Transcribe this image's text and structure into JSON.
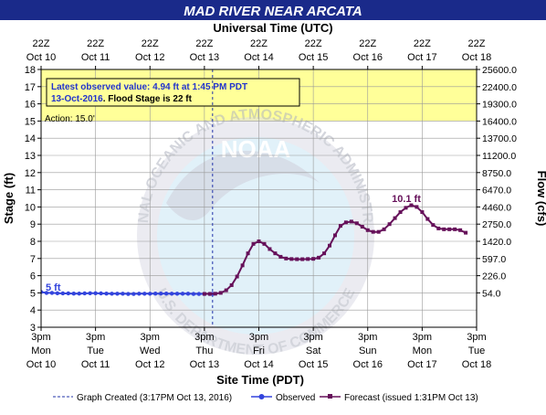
{
  "chart_data": {
    "type": "line",
    "title": "MAD RIVER NEAR ARCATA",
    "top_axis_title": "Universal Time (UTC)",
    "xlabel": "Site Time (PDT)",
    "ylabel": "Stage (ft)",
    "ylabel_right": "Flow (cfs)",
    "ylim": [
      3,
      18
    ],
    "y_ticks": [
      3,
      4,
      5,
      6,
      7,
      8,
      9,
      10,
      11,
      12,
      13,
      14,
      15,
      16,
      17,
      18
    ],
    "x_range_days": [
      0,
      8
    ],
    "bottom_ticks": [
      {
        "day": 0,
        "line1": "3pm",
        "line2": "Mon",
        "line3": "Oct 10"
      },
      {
        "day": 1,
        "line1": "3pm",
        "line2": "Tue",
        "line3": "Oct 11"
      },
      {
        "day": 2,
        "line1": "3pm",
        "line2": "Wed",
        "line3": "Oct 12"
      },
      {
        "day": 3,
        "line1": "3pm",
        "line2": "Thu",
        "line3": "Oct 13"
      },
      {
        "day": 4,
        "line1": "3pm",
        "line2": "Fri",
        "line3": "Oct 14"
      },
      {
        "day": 5,
        "line1": "3pm",
        "line2": "Sat",
        "line3": "Oct 15"
      },
      {
        "day": 6,
        "line1": "3pm",
        "line2": "Sun",
        "line3": "Oct 16"
      },
      {
        "day": 7,
        "line1": "3pm",
        "line2": "Mon",
        "line3": "Oct 17"
      },
      {
        "day": 8,
        "line1": "3pm",
        "line2": "Tue",
        "line3": "Oct 18"
      }
    ],
    "top_ticks": [
      {
        "day": 0,
        "line1": "22Z",
        "line2": "Oct 10"
      },
      {
        "day": 1,
        "line1": "22Z",
        "line2": "Oct 11"
      },
      {
        "day": 2,
        "line1": "22Z",
        "line2": "Oct 12"
      },
      {
        "day": 3,
        "line1": "22Z",
        "line2": "Oct 13"
      },
      {
        "day": 4,
        "line1": "22Z",
        "line2": "Oct 14"
      },
      {
        "day": 5,
        "line1": "22Z",
        "line2": "Oct 15"
      },
      {
        "day": 6,
        "line1": "22Z",
        "line2": "Oct 16"
      },
      {
        "day": 7,
        "line1": "22Z",
        "line2": "Oct 17"
      },
      {
        "day": 8,
        "line1": "22Z",
        "line2": "Oct 18"
      }
    ],
    "flow_ticks": [
      {
        "stage": 5,
        "label": "54.0"
      },
      {
        "stage": 6,
        "label": "226.0"
      },
      {
        "stage": 7,
        "label": "597.0"
      },
      {
        "stage": 8,
        "label": "1420.0"
      },
      {
        "stage": 9,
        "label": "2750.0"
      },
      {
        "stage": 10,
        "label": "4460.0"
      },
      {
        "stage": 11,
        "label": "6470.0"
      },
      {
        "stage": 12,
        "label": "8750.0"
      },
      {
        "stage": 13,
        "label": "11200.0"
      },
      {
        "stage": 14,
        "label": "13700.0"
      },
      {
        "stage": 15,
        "label": "16400.0"
      },
      {
        "stage": 16,
        "label": "19300.0"
      },
      {
        "stage": 17,
        "label": "22400.0"
      },
      {
        "stage": 18,
        "label": "25600.0"
      }
    ],
    "flood_band": {
      "from": 15,
      "to": 18,
      "color": "#ffff99"
    },
    "action_label": "Action: 15.0'",
    "annotation_line1": "Latest observed value: 4.94 ft at 1:45 PM PDT",
    "annotation_line2_prefix": "13-Oct-2016",
    "annotation_line2_suffix": ". Flood Stage is 22 ft",
    "graph_created_day": 3.15,
    "observed_label": "5 ft",
    "forecast_peak_label": "10.1 ft",
    "series": [
      {
        "name": "Observed",
        "color": "#3344dd",
        "points": [
          [
            0.0,
            5.05
          ],
          [
            0.1,
            5.0
          ],
          [
            0.2,
            5.0
          ],
          [
            0.3,
            4.98
          ],
          [
            0.4,
            4.97
          ],
          [
            0.5,
            4.97
          ],
          [
            0.6,
            4.96
          ],
          [
            0.7,
            4.96
          ],
          [
            0.8,
            4.97
          ],
          [
            0.9,
            4.98
          ],
          [
            1.0,
            4.98
          ],
          [
            1.1,
            4.97
          ],
          [
            1.2,
            4.96
          ],
          [
            1.3,
            4.95
          ],
          [
            1.4,
            4.95
          ],
          [
            1.5,
            4.95
          ],
          [
            1.6,
            4.94
          ],
          [
            1.7,
            4.94
          ],
          [
            1.8,
            4.95
          ],
          [
            1.9,
            4.95
          ],
          [
            2.0,
            4.95
          ],
          [
            2.1,
            4.96
          ],
          [
            2.2,
            4.96
          ],
          [
            2.3,
            4.96
          ],
          [
            2.4,
            4.95
          ],
          [
            2.5,
            4.95
          ],
          [
            2.6,
            4.95
          ],
          [
            2.7,
            4.95
          ],
          [
            2.8,
            4.94
          ],
          [
            2.9,
            4.94
          ],
          [
            3.0,
            4.94
          ],
          [
            3.1,
            4.94
          ],
          [
            3.15,
            4.94
          ]
        ]
      },
      {
        "name": "Forecast (issued 1:31PM Oct 13)",
        "color": "#66115a",
        "points": [
          [
            3.0,
            4.94
          ],
          [
            3.1,
            4.94
          ],
          [
            3.2,
            4.95
          ],
          [
            3.3,
            5.0
          ],
          [
            3.4,
            5.15
          ],
          [
            3.5,
            5.45
          ],
          [
            3.6,
            5.95
          ],
          [
            3.7,
            6.6
          ],
          [
            3.8,
            7.3
          ],
          [
            3.9,
            7.85
          ],
          [
            4.0,
            8.0
          ],
          [
            4.1,
            7.85
          ],
          [
            4.2,
            7.55
          ],
          [
            4.3,
            7.3
          ],
          [
            4.4,
            7.1
          ],
          [
            4.5,
            7.0
          ],
          [
            4.6,
            6.97
          ],
          [
            4.7,
            6.96
          ],
          [
            4.8,
            6.96
          ],
          [
            4.9,
            6.97
          ],
          [
            5.0,
            6.98
          ],
          [
            5.1,
            7.05
          ],
          [
            5.2,
            7.3
          ],
          [
            5.3,
            7.75
          ],
          [
            5.4,
            8.35
          ],
          [
            5.5,
            8.9
          ],
          [
            5.6,
            9.1
          ],
          [
            5.7,
            9.15
          ],
          [
            5.8,
            9.05
          ],
          [
            5.9,
            8.85
          ],
          [
            6.0,
            8.65
          ],
          [
            6.1,
            8.55
          ],
          [
            6.2,
            8.55
          ],
          [
            6.3,
            8.7
          ],
          [
            6.4,
            9.0
          ],
          [
            6.5,
            9.35
          ],
          [
            6.6,
            9.7
          ],
          [
            6.7,
            9.95
          ],
          [
            6.8,
            10.1
          ],
          [
            6.9,
            10.0
          ],
          [
            7.0,
            9.7
          ],
          [
            7.1,
            9.3
          ],
          [
            7.2,
            8.95
          ],
          [
            7.3,
            8.75
          ],
          [
            7.4,
            8.7
          ],
          [
            7.5,
            8.7
          ],
          [
            7.6,
            8.7
          ],
          [
            7.7,
            8.65
          ],
          [
            7.8,
            8.5
          ]
        ]
      }
    ]
  },
  "legend": {
    "graph_created": "Graph Created (3:17PM Oct 13, 2016)",
    "observed": "Observed",
    "forecast": "Forecast (issued 1:31PM Oct 13)"
  },
  "watermark": {
    "logo_text": "NOAA",
    "ring_text_top": "NATIONAL OCEANIC AND ATMOSPHERIC ADMINISTRATION",
    "ring_text_bottom": "U.S. DEPARTMENT OF COMMERCE"
  },
  "colors": {
    "title_bg": "#1a2a8a",
    "title_fg": "#ffffff",
    "observed": "#3344dd",
    "forecast": "#66115a",
    "annotation_text": "#2233cc",
    "grid": "#999999"
  }
}
